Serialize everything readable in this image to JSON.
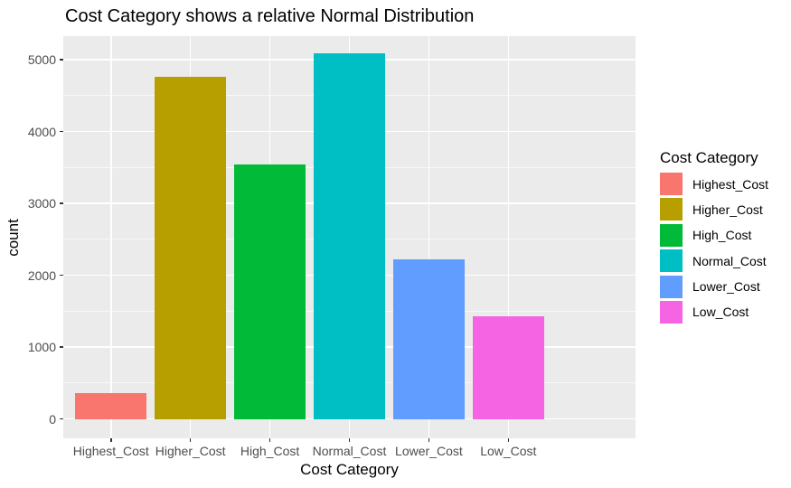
{
  "chart_data": {
    "type": "bar",
    "title": "Cost Category shows a relative Normal Distribution",
    "xlabel": "Cost Category",
    "ylabel": "count",
    "categories": [
      "Highest_Cost",
      "Higher_Cost",
      "High_Cost",
      "Normal_Cost",
      "Lower_Cost",
      "Low_Cost"
    ],
    "values": [
      360,
      4770,
      3540,
      5090,
      2220,
      1430
    ],
    "colors": [
      "#F8766D",
      "#B79F00",
      "#00BA38",
      "#00BFC4",
      "#619CFF",
      "#F564E3"
    ],
    "y_ticks": [
      0,
      1000,
      2000,
      3000,
      4000,
      5000
    ],
    "y_minor_ticks": [
      500,
      1500,
      2500,
      3500,
      4500
    ],
    "ylim": [
      -270,
      5330
    ],
    "grid": "on",
    "bar_width_fraction": 0.9,
    "legend": {
      "title": "Cost Category",
      "position": "right",
      "entries": [
        {
          "label": "Highest_Cost",
          "color": "#F8766D"
        },
        {
          "label": "Higher_Cost",
          "color": "#B79F00"
        },
        {
          "label": "High_Cost",
          "color": "#00BA38"
        },
        {
          "label": "Normal_Cost",
          "color": "#00BFC4"
        },
        {
          "label": "Lower_Cost",
          "color": "#619CFF"
        },
        {
          "label": "Low_Cost",
          "color": "#F564E3"
        }
      ]
    },
    "style": {
      "panel_background": "#EBEBEB",
      "gridline_color": "#FFFFFF",
      "axis_text_color": "#4D4D4D",
      "tick_mark_color": "#333333",
      "text_color": "#000000",
      "figure_background": "#FFFFFF"
    }
  }
}
